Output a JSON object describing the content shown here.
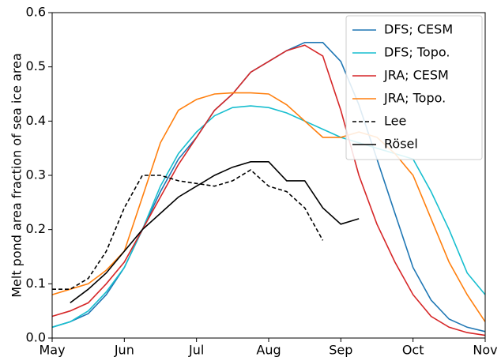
{
  "chart_data": {
    "type": "line",
    "y_label": "Melt pond area fraction of sea ice area",
    "categories": [
      "May",
      null,
      null,
      null,
      "Jun",
      null,
      null,
      null,
      "Jul",
      null,
      null,
      null,
      "Aug",
      null,
      null,
      null,
      "Sep",
      null,
      null,
      null,
      "Oct",
      null,
      null,
      null,
      "Nov"
    ],
    "ylim": [
      0,
      0.6
    ],
    "yticks": [
      {
        "value": 0,
        "label": "0.0"
      },
      0.1,
      0.2,
      0.3,
      0.4,
      0.5,
      0.6
    ],
    "legend": "upper right",
    "series": [
      {
        "name": "DFS; CESM",
        "color": "#1f77b4",
        "dash": "solid",
        "values": [
          0.02,
          0.03,
          0.045,
          0.08,
          0.13,
          0.2,
          0.27,
          0.33,
          0.37,
          0.42,
          0.45,
          0.49,
          0.51,
          0.53,
          0.545,
          0.545,
          0.51,
          0.43,
          0.33,
          0.23,
          0.13,
          0.07,
          0.035,
          0.02,
          0.012
        ]
      },
      {
        "name": "DFS; Topo.",
        "color": "#17becf",
        "dash": "solid",
        "values": [
          0.02,
          0.03,
          0.05,
          0.085,
          0.13,
          0.2,
          0.28,
          0.34,
          0.38,
          0.41,
          0.425,
          0.428,
          0.425,
          0.415,
          0.4,
          0.385,
          0.37,
          0.36,
          0.35,
          0.34,
          0.33,
          0.27,
          0.2,
          0.12,
          0.08
        ]
      },
      {
        "name": "JRA; CESM",
        "color": "#d62728",
        "dash": "solid",
        "values": [
          0.04,
          0.05,
          0.065,
          0.1,
          0.14,
          0.2,
          0.26,
          0.32,
          0.37,
          0.42,
          0.45,
          0.49,
          0.51,
          0.53,
          0.54,
          0.52,
          0.42,
          0.3,
          0.21,
          0.14,
          0.08,
          0.04,
          0.02,
          0.01,
          0.005
        ]
      },
      {
        "name": "JRA; Topo.",
        "color": "#ff7f0e",
        "dash": "solid",
        "values": [
          0.08,
          0.09,
          0.1,
          0.125,
          0.16,
          0.26,
          0.36,
          0.42,
          0.44,
          0.45,
          0.452,
          0.452,
          0.45,
          0.43,
          0.4,
          0.37,
          0.37,
          0.38,
          0.37,
          0.34,
          0.3,
          0.22,
          0.14,
          0.08,
          0.03
        ]
      },
      {
        "name": "Lee",
        "color": "#000000",
        "dash": "dashed",
        "values": [
          0.09,
          0.09,
          0.11,
          0.16,
          0.24,
          0.3,
          0.3,
          0.29,
          0.285,
          0.28,
          0.29,
          0.31,
          0.28,
          0.27,
          0.24,
          0.18,
          null,
          null,
          null,
          null,
          null,
          null,
          null,
          null,
          null
        ]
      },
      {
        "name": "Rösel",
        "color": "#000000",
        "dash": "solid",
        "values": [
          null,
          0.065,
          0.09,
          0.12,
          0.16,
          0.2,
          0.23,
          0.26,
          0.28,
          0.3,
          0.315,
          0.325,
          0.325,
          0.29,
          0.29,
          0.24,
          0.21,
          0.22,
          null,
          null,
          null,
          null,
          null,
          null,
          null
        ]
      }
    ]
  }
}
